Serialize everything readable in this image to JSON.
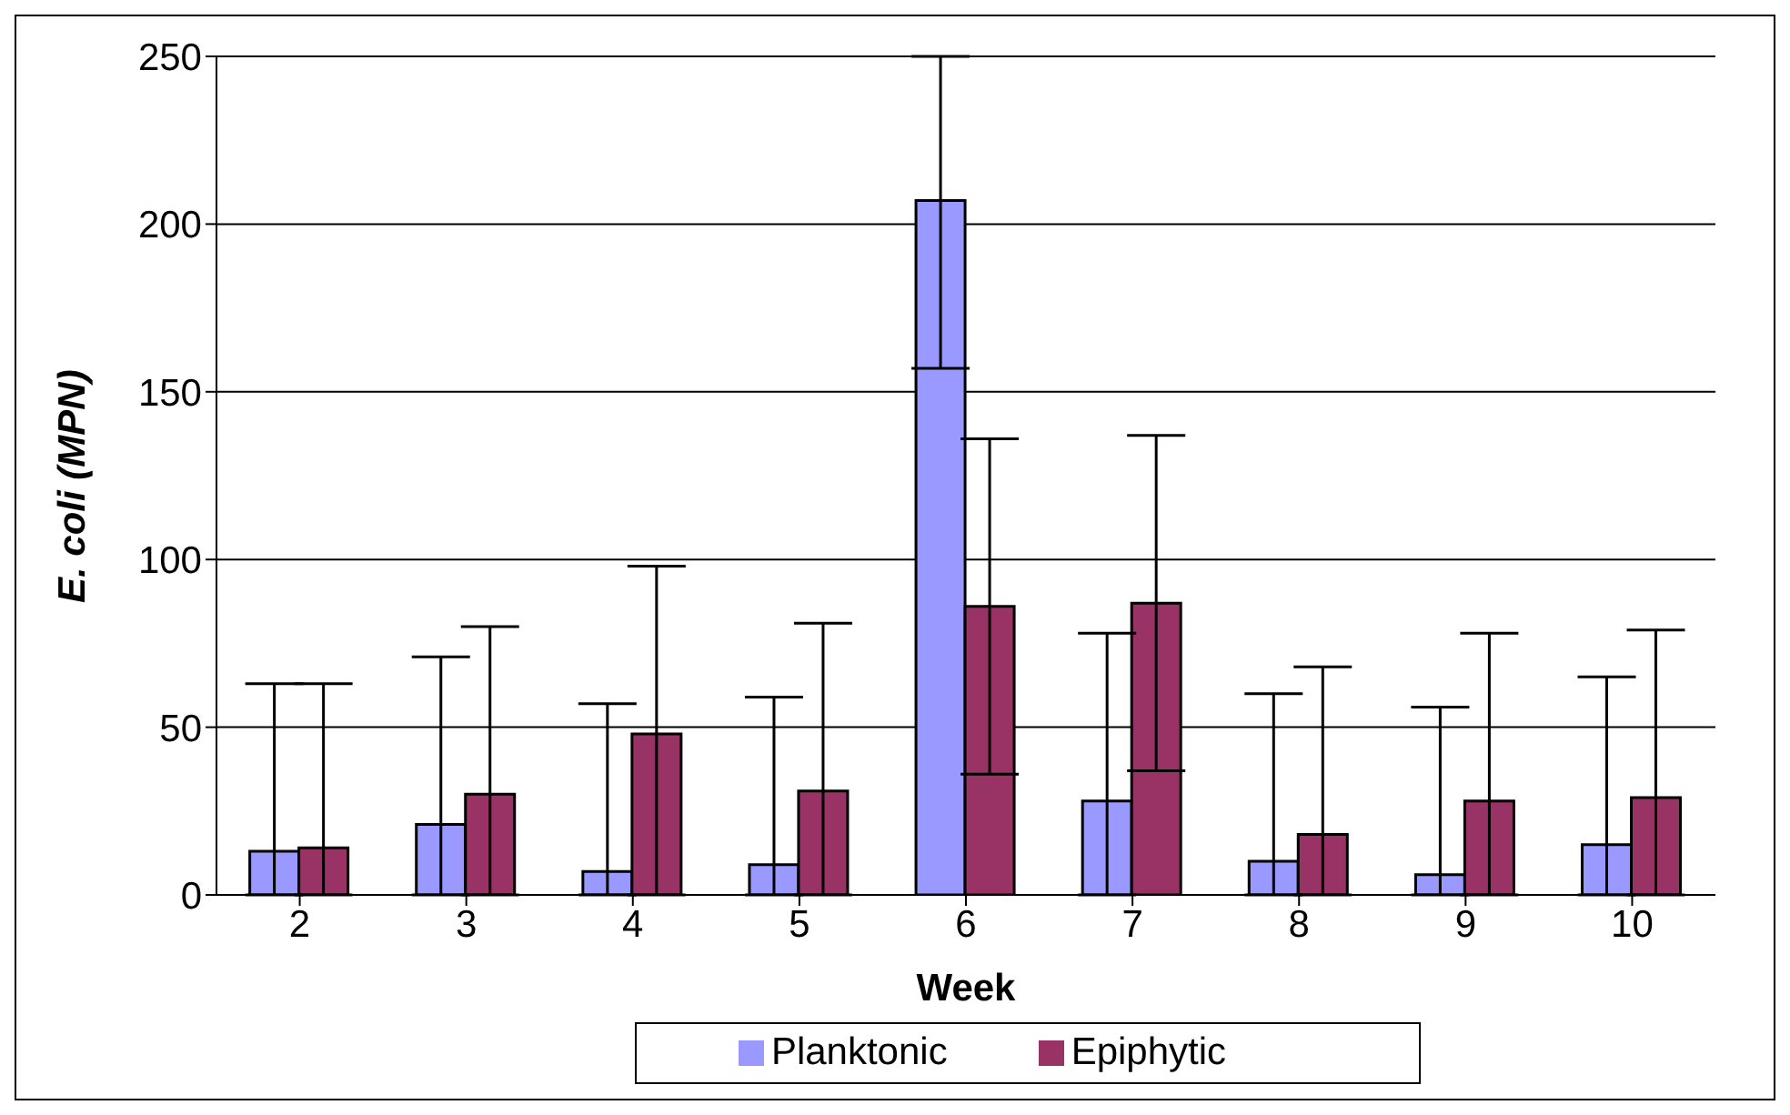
{
  "chart_data": {
    "type": "bar",
    "xlabel": "Week",
    "ylabel": "E. coli (MPN)",
    "categories": [
      "2",
      "3",
      "4",
      "5",
      "6",
      "7",
      "8",
      "9",
      "10"
    ],
    "series": [
      {
        "name": "Planktonic",
        "color": "#9999ff",
        "values": [
          13,
          21,
          7,
          9,
          207,
          28,
          10,
          6,
          15
        ],
        "errors": [
          [
            0,
            63
          ],
          [
            0,
            71
          ],
          [
            0,
            57
          ],
          [
            0,
            59
          ],
          [
            157,
            250
          ],
          [
            0,
            78
          ],
          [
            0,
            60
          ],
          [
            0,
            56
          ],
          [
            0,
            65
          ]
        ]
      },
      {
        "name": "Epiphytic",
        "color": "#993366",
        "values": [
          14,
          30,
          48,
          31,
          86,
          87,
          18,
          28,
          29
        ],
        "errors": [
          [
            0,
            63
          ],
          [
            0,
            80
          ],
          [
            0,
            98
          ],
          [
            0,
            81
          ],
          [
            36,
            136
          ],
          [
            37,
            137
          ],
          [
            0,
            68
          ],
          [
            0,
            78
          ],
          [
            0,
            79
          ]
        ]
      }
    ],
    "ylim": [
      0,
      250
    ],
    "yticks": [
      0,
      50,
      100,
      150,
      200,
      250
    ],
    "grid": "y",
    "legend": "bottom"
  }
}
